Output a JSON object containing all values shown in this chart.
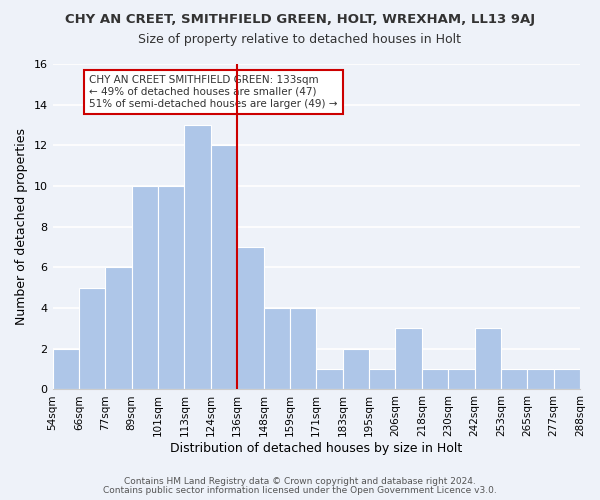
{
  "title": "CHY AN CREET, SMITHFIELD GREEN, HOLT, WREXHAM, LL13 9AJ",
  "subtitle": "Size of property relative to detached houses in Holt",
  "xlabel": "Distribution of detached houses by size in Holt",
  "ylabel": "Number of detached properties",
  "bin_edges": [
    "54sqm",
    "66sqm",
    "77sqm",
    "89sqm",
    "101sqm",
    "113sqm",
    "124sqm",
    "136sqm",
    "148sqm",
    "159sqm",
    "171sqm",
    "183sqm",
    "195sqm",
    "206sqm",
    "218sqm",
    "230sqm",
    "242sqm",
    "253sqm",
    "265sqm",
    "277sqm",
    "288sqm"
  ],
  "bar_heights": [
    2,
    5,
    6,
    10,
    10,
    13,
    12,
    7,
    4,
    4,
    1,
    2,
    1,
    3,
    1,
    1,
    3,
    1,
    1,
    1
  ],
  "bar_color": "#aec6e8",
  "vline_x": 6.5,
  "vline_color": "#cc0000",
  "ylim": [
    0,
    16
  ],
  "yticks": [
    0,
    2,
    4,
    6,
    8,
    10,
    12,
    14,
    16
  ],
  "annotation_title": "CHY AN CREET SMITHFIELD GREEN: 133sqm",
  "annotation_line1": "← 49% of detached houses are smaller (47)",
  "annotation_line2": "51% of semi-detached houses are larger (49) →",
  "footer1": "Contains HM Land Registry data © Crown copyright and database right 2024.",
  "footer2": "Contains public sector information licensed under the Open Government Licence v3.0.",
  "background_color": "#eef2f9",
  "plot_background": "#eef2f9",
  "grid_color": "#ffffff",
  "annotation_box_color": "#ffffff",
  "annotation_border_color": "#cc0000"
}
